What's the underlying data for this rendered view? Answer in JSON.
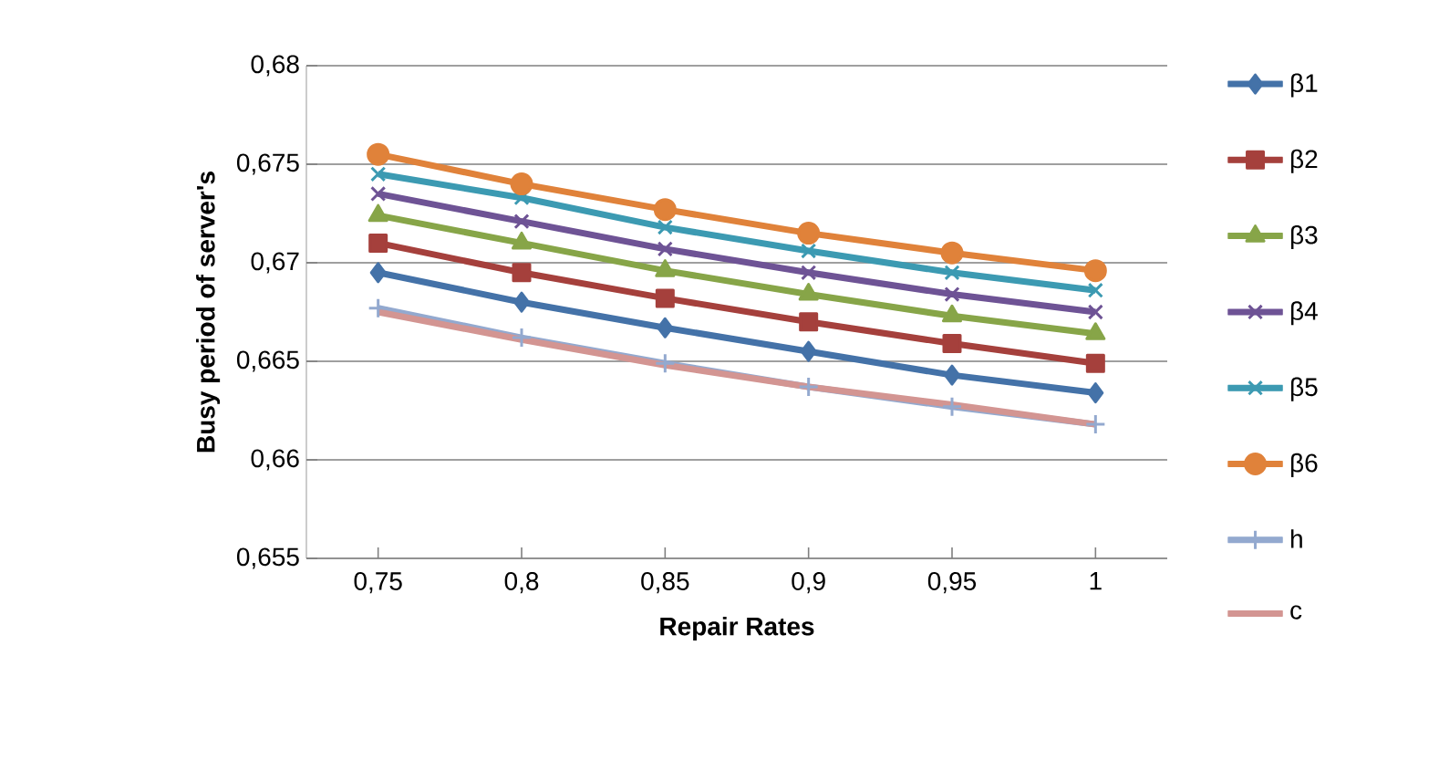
{
  "chart_data": {
    "type": "line",
    "xlabel": "**Repair Rates**",
    "ylabel": "**Busy period of server's**",
    "categories": [
      "0,75",
      "0,8",
      "0,85",
      "0,9",
      "0,95",
      "1"
    ],
    "ylim": [
      0.655,
      0.68
    ],
    "yticks": [
      {
        "value": 0.655,
        "label": "0,655"
      },
      {
        "value": 0.66,
        "label": "0,66"
      },
      {
        "value": 0.665,
        "label": "0,665"
      },
      {
        "value": 0.67,
        "label": "0,67"
      },
      {
        "value": 0.675,
        "label": "0,675"
      },
      {
        "value": 0.68,
        "label": "0,68"
      }
    ],
    "grid": "y",
    "legend": "right",
    "line_style": "solid",
    "series": [
      {
        "name": "β1",
        "color": "#4472a8",
        "marker": "diamond",
        "values": [
          0.6695,
          0.668,
          0.6667,
          0.6655,
          0.6643,
          0.6634
        ]
      },
      {
        "name": "β2",
        "color": "#a5403c",
        "marker": "square",
        "values": [
          0.671,
          0.6695,
          0.6682,
          0.667,
          0.6659,
          0.6649
        ]
      },
      {
        "name": "β3",
        "color": "#87a548",
        "marker": "triangle",
        "values": [
          0.6724,
          0.671,
          0.6696,
          0.6684,
          0.6673,
          0.6664
        ]
      },
      {
        "name": "β4",
        "color": "#6e5395",
        "marker": "cross",
        "values": [
          0.6735,
          0.6721,
          0.6707,
          0.6695,
          0.6684,
          0.6675
        ]
      },
      {
        "name": "β5",
        "color": "#3c9ab2",
        "marker": "cross",
        "values": [
          0.6745,
          0.6733,
          0.6718,
          0.6706,
          0.6695,
          0.6686
        ]
      },
      {
        "name": "β6",
        "color": "#e0823a",
        "marker": "circle",
        "values": [
          0.6755,
          0.674,
          0.6727,
          0.6715,
          0.6705,
          0.6696
        ]
      },
      {
        "name": "h",
        "color": "#93a9cf",
        "marker": "plus",
        "values": [
          0.6677,
          0.6662,
          0.6649,
          0.6637,
          0.6627,
          0.6618
        ]
      },
      {
        "name": "c",
        "color": "#d39592",
        "marker": "none",
        "values": [
          0.6675,
          0.6661,
          0.6648,
          0.6637,
          0.6628,
          0.6618
        ]
      }
    ]
  }
}
